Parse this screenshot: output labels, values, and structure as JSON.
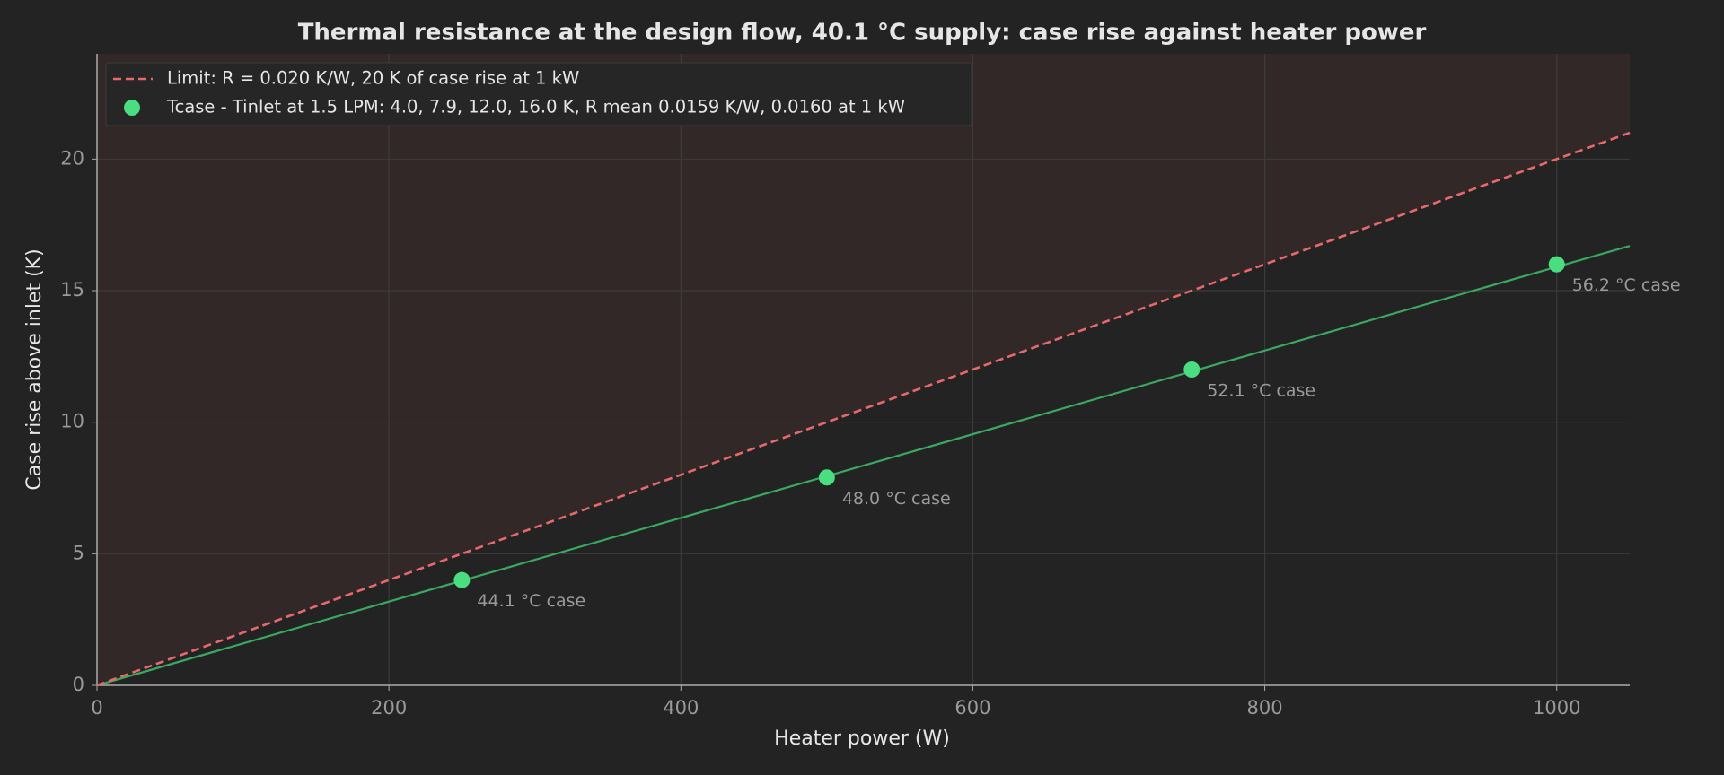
{
  "chart_data": {
    "type": "scatter",
    "title": "Thermal resistance at the design flow, 40.1 °C supply: case rise against heater power",
    "xlabel": "Heater power (W)",
    "ylabel": "Case rise above inlet (K)",
    "xlim": [
      0,
      1050
    ],
    "ylim": [
      0,
      24
    ],
    "xticks": [
      0,
      200,
      400,
      600,
      800,
      1000
    ],
    "yticks": [
      0,
      5,
      10,
      15,
      20
    ],
    "grid": true,
    "legend": "upper left",
    "limit_fill": "#332828",
    "series": [
      {
        "name": "Limit: R = 0.020 K/W, 20 K of case rise at 1 kW",
        "color": "#e8696b",
        "style": "dashed",
        "x": [
          0,
          1050
        ],
        "values": [
          0,
          21
        ]
      },
      {
        "name": "Tcase - Tinlet at 1.5 LPM: 4.0, 7.9, 12.0, 16.0 K, R mean 0.0159 K/W, 0.0160 at 1 kW",
        "color": "#4ade80",
        "style": "markers",
        "x": [
          250,
          500,
          750,
          1000
        ],
        "values": [
          4.0,
          7.9,
          12.0,
          16.0
        ],
        "point_labels": [
          "44.1 °C case",
          "48.0 °C case",
          "52.1 °C case",
          "56.2 °C case"
        ]
      }
    ],
    "fit": {
      "color": "#3aa862",
      "x": [
        0,
        1050
      ],
      "values": [
        0,
        16.7
      ]
    }
  }
}
